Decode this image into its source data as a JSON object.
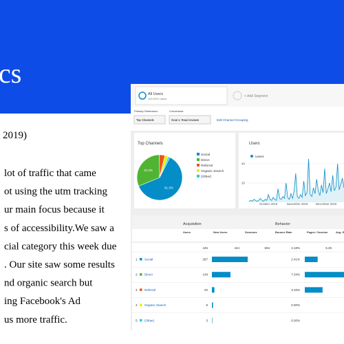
{
  "slide": {
    "title": "cs",
    "date": "2019)",
    "lines": [
      "lot of traffic that came",
      "ot using the utm tracking",
      "ur main focus because it",
      "s of accessibility.We saw a",
      "cial category this week due",
      ".  Our site saw some results",
      "nd organic search but",
      "ing Facebook's Ad",
      "us more traffic."
    ]
  },
  "segment": {
    "name": "All Users",
    "share": "100.00% Users",
    "add": "+ Add Segment"
  },
  "dimensions": {
    "primary_label": "Primary Dimension:",
    "primary_value": "Top Channels",
    "conversion_label": "Conversion:",
    "conversion_value": "Goal 1: Read reviews",
    "edit": "Edit Channel Grouping"
  },
  "pie": {
    "title": "Top Channels",
    "categories": [
      "Social",
      "Direct",
      "Referral",
      "Organic Search",
      "(Other)"
    ],
    "values": [
      61.3,
      31.0,
      4.0,
      2.5,
      1.2
    ],
    "value_labels": [
      "61.3%",
      "31.0%",
      null,
      null,
      null
    ],
    "colors": [
      "#058dc7",
      "#50b432",
      "#ed561b",
      "#edef00",
      "#24cbe5"
    ]
  },
  "line": {
    "title": "Users",
    "series_name": "Users",
    "color": "#058dc7",
    "values": [
      1,
      2,
      1,
      3,
      2,
      1,
      2,
      4,
      2,
      1,
      3,
      2,
      8,
      3,
      2,
      5,
      3,
      2,
      14,
      4,
      3,
      6,
      4,
      20,
      5,
      3,
      9,
      4,
      12,
      30,
      6,
      4,
      8,
      5,
      22,
      7,
      10,
      45,
      8,
      6,
      15,
      9,
      24,
      12,
      7,
      18,
      10,
      35,
      9,
      14,
      20,
      11,
      28,
      12,
      16,
      40,
      13,
      19,
      25,
      15
    ],
    "ylim": [
      0,
      50
    ],
    "yticks": [
      20,
      40
    ],
    "xlabels": [
      "October 2019",
      "November 2019",
      "December 2019"
    ]
  },
  "table": {
    "groups": [
      "Acquisition",
      "Behavior"
    ],
    "columns": [
      "Users",
      "New Users",
      "Sessions",
      "Bounce Rate",
      "Pages / Session",
      "Avg. Session"
    ],
    "totals": {
      "users": 445,
      "new_users": 444,
      "sessions": 694,
      "bounce_rate": "4.18%",
      "pages": 5.29
    },
    "rows": [
      {
        "rank": "1",
        "channel": "Social",
        "users": 287,
        "bounce": 2.41,
        "bounce_label": "2.41%"
      },
      {
        "rank": "2",
        "channel": "Direct",
        "users": 149,
        "bounce": 7.34,
        "bounce_label": "7.34%"
      },
      {
        "rank": "3",
        "channel": "Referral",
        "users": 20,
        "bounce": 3.33,
        "bounce_label": "3.33%"
      },
      {
        "rank": "4",
        "channel": "Organic Search",
        "users": 9,
        "bounce": 0,
        "bounce_label": "0.00%"
      },
      {
        "rank": "5",
        "channel": "(Other)",
        "users": 3,
        "bounce": 0,
        "bounce_label": "0.00%"
      }
    ]
  }
}
